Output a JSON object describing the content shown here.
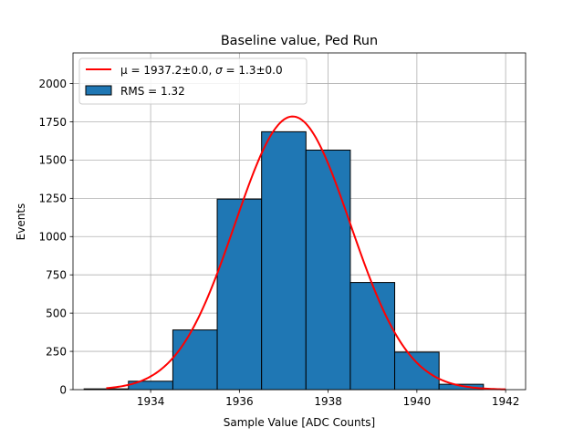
{
  "chart_data": {
    "type": "bar",
    "title": "Baseline value, Ped Run",
    "xlabel": "Sample Value [ADC Counts]",
    "ylabel": "Events",
    "xlim": [
      1932.25,
      1942.45
    ],
    "ylim": [
      0,
      2200
    ],
    "grid": true,
    "legend_position": "top-left",
    "x_ticks": [
      1934,
      1936,
      1938,
      1940,
      1942
    ],
    "x_tick_labels": [
      "1934",
      "1936",
      "1938",
      "1940",
      "1942"
    ],
    "y_ticks": [
      0,
      250,
      500,
      750,
      1000,
      1250,
      1500,
      1750,
      2000
    ],
    "y_tick_labels": [
      "0",
      "250",
      "500",
      "750",
      "1000",
      "1250",
      "1500",
      "1750",
      "2000"
    ],
    "histogram": {
      "name": "RMS = 1.32",
      "color": "#1f77b4",
      "edgecolor": "#000000",
      "bin_edges": [
        1932.5,
        1933.5,
        1934.5,
        1935.5,
        1936.5,
        1937.5,
        1938.5,
        1939.5,
        1940.5,
        1941.5
      ],
      "counts": [
        5,
        55,
        390,
        1245,
        1685,
        1565,
        700,
        245,
        35
      ]
    },
    "fit": {
      "name_prefix": "μ = 1937.2±0.0, ",
      "name_sigma": "σ",
      "name_suffix": " = 1.3±0.0",
      "color": "#ff0000",
      "mu": 1937.2,
      "sigma": 1.3,
      "amplitude": 1785,
      "x_range": [
        1933.0,
        1942.0
      ]
    }
  }
}
